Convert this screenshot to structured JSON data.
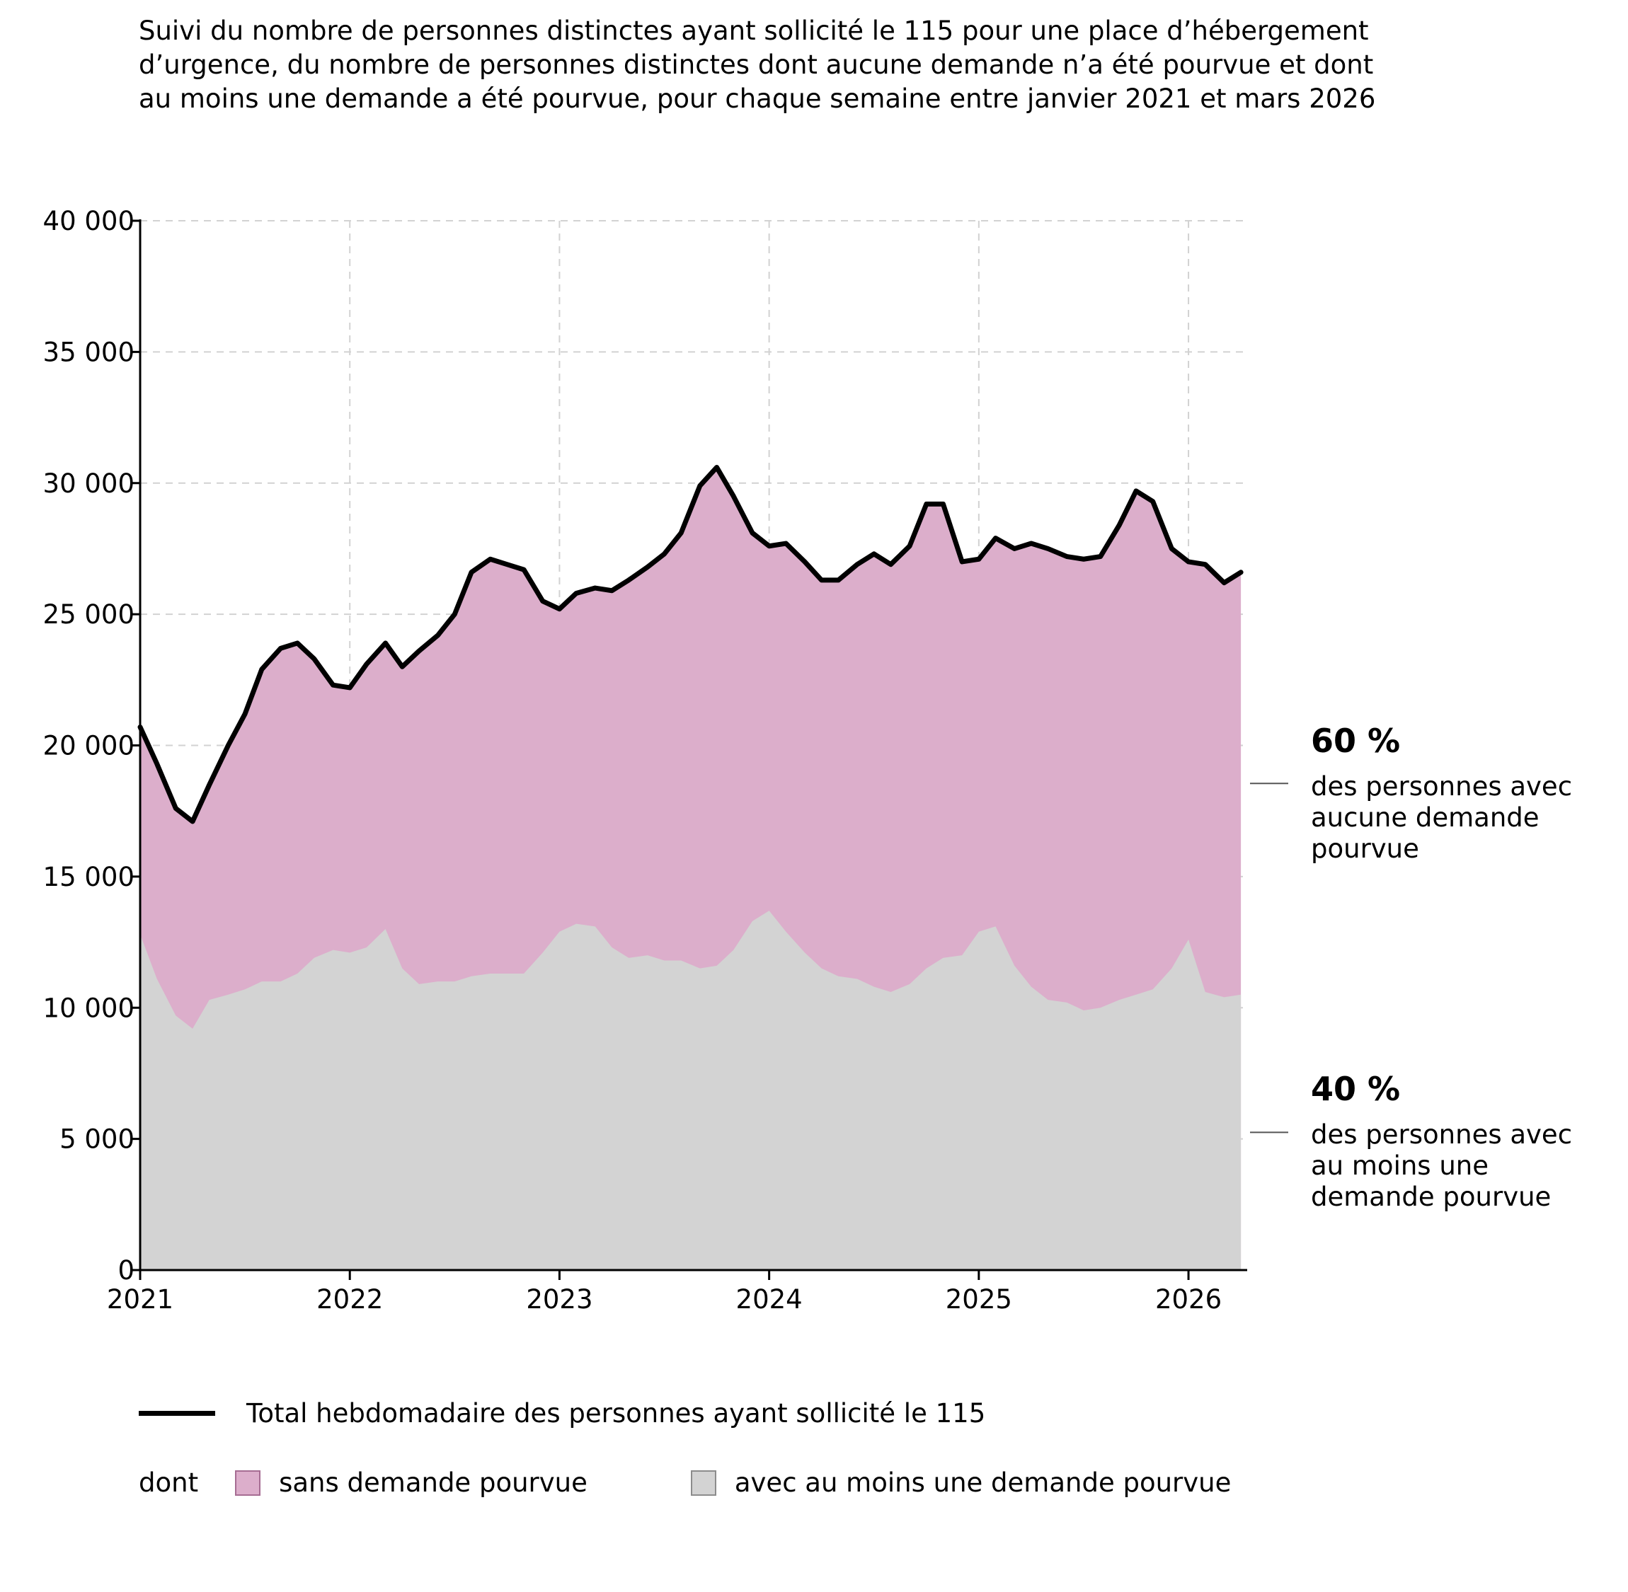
{
  "chart_data": {
    "type": "area",
    "title": "Suivi du nombre de personnes distinctes ayant sollicité le 115 pour une place d’hébergement d’urgence, du nombre de personnes distinctes dont aucune demande n’a été pourvue et dont au moins une demande a été pourvue, pour chaque semaine entre janvier 2021 et mars 2026",
    "xlabel": "",
    "ylabel": "",
    "ylim": [
      0,
      40000
    ],
    "xlim": [
      2021.0,
      2026.28
    ],
    "y_ticks": [
      "0",
      "5 000",
      "10 000",
      "15 000",
      "20 000",
      "25 000",
      "30 000",
      "35 000",
      "40 000"
    ],
    "x_ticks": [
      "2021",
      "2022",
      "2023",
      "2024",
      "2025",
      "2026"
    ],
    "grid": true,
    "x": [
      2021.0,
      2021.08,
      2021.17,
      2021.25,
      2021.33,
      2021.42,
      2021.5,
      2021.58,
      2021.67,
      2021.75,
      2021.83,
      2021.92,
      2022.0,
      2022.08,
      2022.17,
      2022.25,
      2022.33,
      2022.42,
      2022.5,
      2022.58,
      2022.67,
      2022.75,
      2022.83,
      2022.92,
      2023.0,
      2023.08,
      2023.17,
      2023.25,
      2023.33,
      2023.42,
      2023.5,
      2023.58,
      2023.67,
      2023.75,
      2023.83,
      2023.92,
      2024.0,
      2024.08,
      2024.17,
      2024.25,
      2024.33,
      2024.42,
      2024.5,
      2024.58,
      2024.67,
      2024.75,
      2024.83,
      2024.92,
      2025.0,
      2025.08,
      2025.17,
      2025.25,
      2025.33,
      2025.42,
      2025.5,
      2025.58,
      2025.67,
      2025.75,
      2025.83,
      2025.92,
      2026.0,
      2026.08,
      2026.17,
      2026.25
    ],
    "series": [
      {
        "name": "Total hebdomadaire des personnes ayant sollicité le 115",
        "role": "total",
        "values": [
          20700,
          19300,
          17600,
          17100,
          18500,
          20000,
          21200,
          22900,
          23700,
          23900,
          23300,
          22300,
          22200,
          23100,
          23900,
          23000,
          23600,
          24200,
          25000,
          26600,
          27100,
          26900,
          26700,
          25500,
          25200,
          25800,
          26000,
          25900,
          26300,
          26800,
          27300,
          28100,
          29900,
          30600,
          29500,
          28100,
          27600,
          27700,
          27000,
          26300,
          26300,
          26900,
          27300,
          26900,
          27600,
          29200,
          29200,
          27000,
          27100,
          27900,
          27500,
          27700,
          27500,
          27200,
          27100,
          27200,
          28400,
          29700,
          29300,
          27500,
          27000,
          26900,
          26200,
          26600
        ]
      },
      {
        "name": "sans demande pourvue",
        "role": "aucune",
        "values": [
          7900,
          8200,
          7900,
          7900,
          8200,
          9500,
          10500,
          11900,
          12700,
          12600,
          11400,
          10100,
          10100,
          10800,
          10900,
          11500,
          12700,
          13200,
          14000,
          15400,
          15800,
          15600,
          15400,
          13400,
          12300,
          12600,
          12900,
          13600,
          14400,
          14800,
          15500,
          16300,
          18400,
          19000,
          17300,
          14800,
          13900,
          14800,
          14900,
          14800,
          15100,
          15800,
          16500,
          16300,
          16700,
          17700,
          17300,
          15000,
          14200,
          14800,
          15900,
          16900,
          17200,
          17000,
          17200,
          17200,
          18100,
          19200,
          18600,
          16000,
          14400,
          16300,
          15800,
          16100
        ]
      },
      {
        "name": "avec au moins une demande pourvue",
        "role": "pourvue",
        "values": [
          12800,
          11100,
          9700,
          9200,
          10300,
          10500,
          10700,
          11000,
          11000,
          11300,
          11900,
          12200,
          12100,
          12300,
          13000,
          11500,
          10900,
          11000,
          11000,
          11200,
          11300,
          11300,
          11300,
          12100,
          12900,
          13200,
          13100,
          12300,
          11900,
          12000,
          11800,
          11800,
          11500,
          11600,
          12200,
          13300,
          13700,
          12900,
          12100,
          11500,
          11200,
          11100,
          10800,
          10600,
          10900,
          11500,
          11900,
          12000,
          12900,
          13100,
          11600,
          10800,
          10300,
          10200,
          9900,
          10000,
          10300,
          10500,
          10700,
          11500,
          12600,
          10600,
          10400,
          10500
        ]
      }
    ],
    "callouts": [
      {
        "pct": "60 %",
        "text": "des personnes avec aucune demande pourvue"
      },
      {
        "pct": "40 %",
        "text": "des personnes avec au moins une demande pourvue"
      }
    ],
    "legend": {
      "total_label": "Total hebdomadaire des personnes ayant sollicité le 115",
      "dont_label": "dont",
      "aucune_label": "sans demande pourvue",
      "pourvue_label": "avec au moins une demande pourvue"
    },
    "colors": {
      "aucune": "#dcaecb",
      "pourvue": "#d3d3d3",
      "total": "#000000",
      "aucune_border": "#a66d93",
      "pourvue_border": "#8c8c8c"
    }
  }
}
